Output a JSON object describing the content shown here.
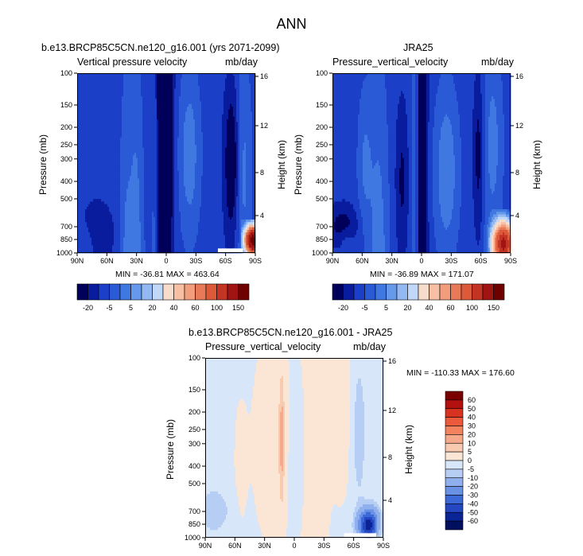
{
  "figure": {
    "title": "ANN"
  },
  "chart_data": [
    {
      "type": "heatmap",
      "title": "b.e13.BRCP85C5CN.ne120_g16.001 (yrs 2071-2099)",
      "subtitle_left": "Vertical pressure velocity",
      "units": "mb/day",
      "ylabel": "Pressure (mb)",
      "y2label": "Height (km)",
      "x_ticks": [
        "90N",
        "60N",
        "30N",
        "0",
        "30S",
        "60S",
        "90S"
      ],
      "y_ticks": [
        "100",
        "150",
        "200",
        "250",
        "300",
        "400",
        "500",
        "700",
        "850",
        "1000"
      ],
      "y2_ticks": [
        "16",
        "12",
        "8",
        "4"
      ],
      "min_max_text": "MIN = -36.81   MAX = 463.64",
      "min": -36.81,
      "max": 463.64,
      "colorbar_labels": [
        "-20",
        "-5",
        "5",
        "20",
        "40",
        "60",
        "100",
        "150"
      ]
    },
    {
      "type": "heatmap",
      "title": "JRA25",
      "subtitle_left": "Pressure_vertical_velocity",
      "units": "mb/day",
      "ylabel": "Pressure (mb)",
      "y2label": "Height (km)",
      "x_ticks": [
        "90N",
        "60N",
        "30N",
        "0",
        "30S",
        "60S",
        "90S"
      ],
      "y_ticks": [
        "100",
        "150",
        "200",
        "250",
        "300",
        "400",
        "500",
        "700",
        "850",
        "1000"
      ],
      "y2_ticks": [
        "16",
        "12",
        "8",
        "4"
      ],
      "min_max_text": "MIN = -36.89   MAX = 171.07",
      "min": -36.89,
      "max": 171.07,
      "colorbar_labels": [
        "-20",
        "-5",
        "5",
        "20",
        "40",
        "60",
        "100",
        "150"
      ]
    },
    {
      "type": "heatmap",
      "title": "b.e13.BRCP85C5CN.ne120_g16.001 - JRA25",
      "subtitle_left": "Pressure_vertical_velocity",
      "units": "mb/day",
      "ylabel": "Pressure (mb)",
      "y2label": "Height (km)",
      "x_ticks": [
        "90N",
        "60N",
        "30N",
        "0",
        "30S",
        "60S",
        "90S"
      ],
      "y_ticks": [
        "100",
        "150",
        "200",
        "250",
        "300",
        "400",
        "500",
        "700",
        "850",
        "1000"
      ],
      "y2_ticks": [
        "16",
        "12",
        "8",
        "4"
      ],
      "min_max_text": "MIN = -110.33   MAX = 176.60",
      "min": -110.33,
      "max": 176.6,
      "colorbar_labels": [
        "60",
        "50",
        "40",
        "30",
        "20",
        "10",
        "5",
        "0",
        "-5",
        "-10",
        "-20",
        "-30",
        "-40",
        "-50",
        "-60"
      ]
    }
  ],
  "colors": {
    "seq": [
      "#00005a",
      "#0a1c9e",
      "#1c3fc8",
      "#2a5ad6",
      "#3f78e0",
      "#6699ec",
      "#93b8f2",
      "#c1d8f8",
      "#f8dccb",
      "#f7c0a4",
      "#f29d7c",
      "#e97a58",
      "#dc5a3a",
      "#c43424",
      "#a01414",
      "#6e0000"
    ],
    "diff": [
      "#7a0000",
      "#b31010",
      "#d83220",
      "#eb5a3a",
      "#f3825e",
      "#f6a98a",
      "#f8cab0",
      "#fbe6d6",
      "#d8e6fa",
      "#b6cdf4",
      "#8fb0ec",
      "#6a92e4",
      "#3d69d8",
      "#2446c0",
      "#0a2496",
      "#00105e"
    ]
  }
}
